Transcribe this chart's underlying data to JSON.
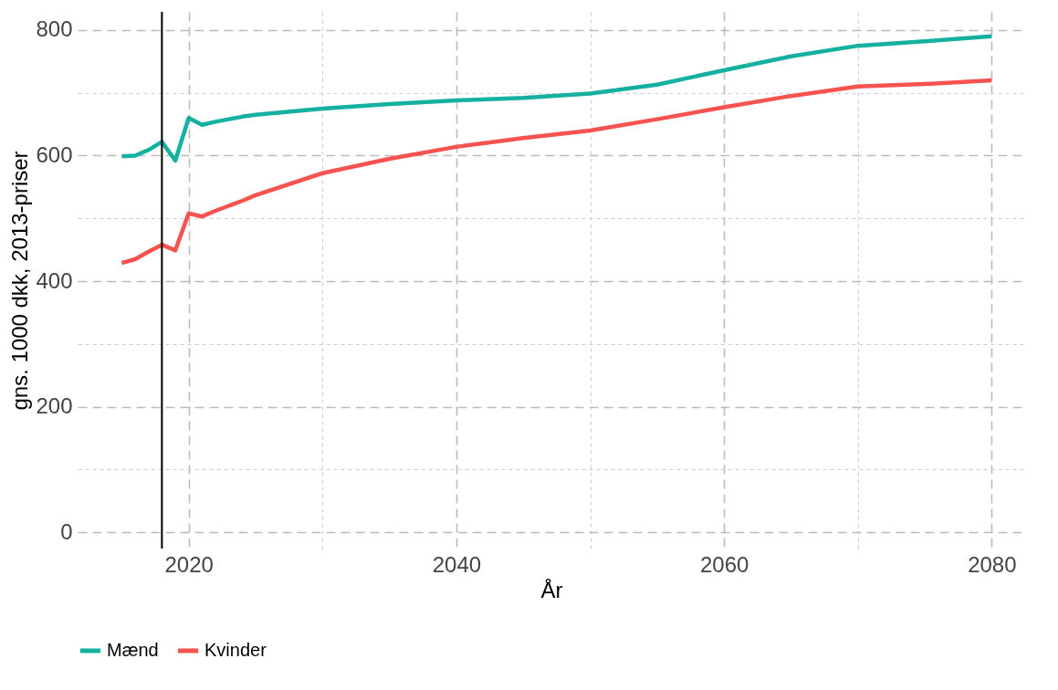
{
  "chart_data": {
    "type": "line",
    "xlabel": "År",
    "ylabel": "gns. 1000 dkk, 2013-priser",
    "x": [
      2015,
      2016,
      2017,
      2018,
      2019,
      2020,
      2021,
      2022,
      2023,
      2024,
      2025,
      2030,
      2035,
      2040,
      2045,
      2050,
      2055,
      2060,
      2065,
      2070,
      2075,
      2080
    ],
    "series": [
      {
        "name": "Mænd",
        "color": "#14b1a1",
        "values": [
          599,
          600,
          609,
          622,
          592,
          660,
          649,
          654,
          658,
          662,
          665,
          675,
          682,
          688,
          692,
          699,
          713,
          736,
          758,
          775,
          782,
          790
        ]
      },
      {
        "name": "Kvinder",
        "color": "#f6524f",
        "values": [
          429,
          435,
          447,
          458,
          449,
          508,
          503,
          512,
          520,
          528,
          537,
          572,
          595,
          614,
          628,
          640,
          658,
          677,
          695,
          710,
          714,
          720
        ]
      }
    ],
    "xlim": [
      2011.7,
      2082.5
    ],
    "ylim": [
      -26,
      829
    ],
    "xticks": [
      2020,
      {
        "value": 2030,
        "label": null
      },
      2040,
      {
        "value": 2050,
        "label": null
      },
      2060,
      {
        "value": 2070,
        "label": null
      },
      2080
    ],
    "yticks": [
      0,
      {
        "value": 100,
        "label": null
      },
      200,
      {
        "value": 300,
        "label": null
      },
      400,
      {
        "value": 500,
        "label": null
      },
      600,
      {
        "value": 700,
        "label": null
      },
      800
    ],
    "ref_lines": [
      {
        "axis": "x",
        "value": 2018,
        "color": "#000000"
      }
    ],
    "grid": true,
    "legend": "bottom",
    "line_style": "solid",
    "marker": "none"
  }
}
